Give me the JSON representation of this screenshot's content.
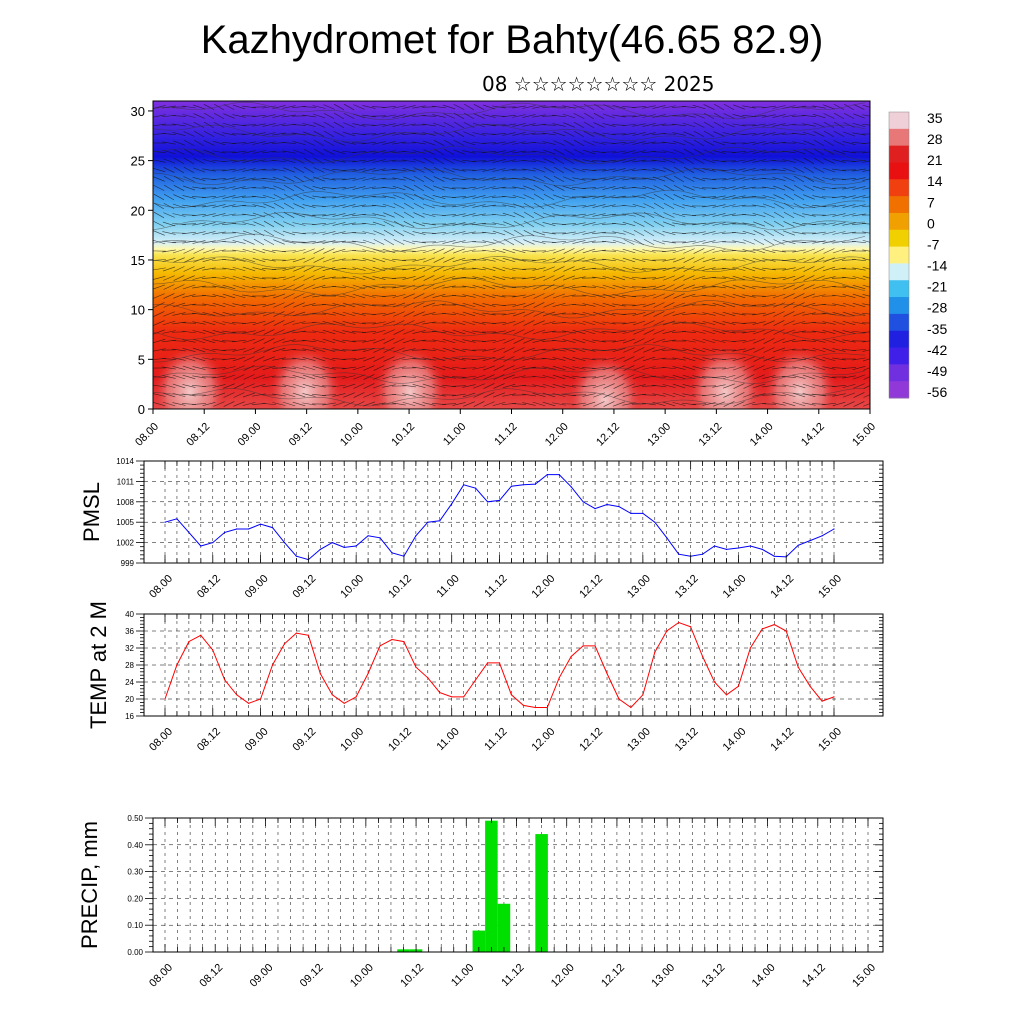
{
  "title": "Kazhydromet for Bahty(46.65 82.9)",
  "subtitle": "08 ☆☆☆☆☆☆☆☆ 2025",
  "colors": {
    "pmsl_line": "#0000ff",
    "temp_line": "#ff0000",
    "precip_bar": "#00e000",
    "colorbar": [
      "#f0d0d8",
      "#e87878",
      "#e02020",
      "#e81010",
      "#f04010",
      "#f07000",
      "#f0a000",
      "#f0d000",
      "#fff080",
      "#d0f0f8",
      "#40c0f0",
      "#2090e8",
      "#2050e0",
      "#2020e0",
      "#4020e8",
      "#7030e0",
      "#9038d8"
    ]
  },
  "chart_data": [
    {
      "type": "heatmap",
      "title": "",
      "ylabel": "",
      "ylim": [
        0,
        31
      ],
      "yticks": [
        "0",
        "5",
        "10",
        "15",
        "20",
        "25",
        "30"
      ],
      "xticks": [
        "08.00",
        "08.12",
        "09.00",
        "09.12",
        "10.00",
        "10.12",
        "11.00",
        "11.12",
        "12.00",
        "12.12",
        "13.00",
        "13.12",
        "14.00",
        "14.12",
        "15.00"
      ],
      "colorbar_labels": [
        "35",
        "28",
        "21",
        "14",
        "7",
        "0",
        "-7",
        "-14",
        "-21",
        "-28",
        "-35",
        "-42",
        "-49",
        "-56"
      ]
    },
    {
      "type": "line",
      "ylabel": "PMSL",
      "ylim": [
        999,
        1014
      ],
      "yticks": [
        "1014",
        "1011",
        "1008",
        "1005",
        "1002",
        "999"
      ],
      "xticks": [
        "08.00",
        "08.12",
        "09.00",
        "09.12",
        "10.00",
        "10.12",
        "11.00",
        "11.12",
        "12.00",
        "12.12",
        "13.00",
        "13.12",
        "14.00",
        "14.12",
        "15.00"
      ],
      "series": [
        {
          "values": [
            1005,
            1005.5,
            1003.5,
            1001.5,
            1002,
            1003.5,
            1004,
            1004,
            1004.7,
            1004.2,
            1002,
            1000,
            999.5,
            1001,
            1002,
            1001.3,
            1001.5,
            1003,
            1002.7,
            1000.5,
            1000,
            1003,
            1005,
            1005.2,
            1007.7,
            1010.5,
            1010,
            1008,
            1008.2,
            1010.3,
            1010.5,
            1010.6,
            1012,
            1012,
            1010.2,
            1008,
            1007,
            1007.6,
            1007.3,
            1006.3,
            1006.3,
            1005,
            1002.7,
            1000.3,
            1000,
            1000.3,
            1001.5,
            1001,
            1001.2,
            1001.5,
            1001,
            1000,
            999.9,
            1001.6,
            1002.3,
            1003,
            1004
          ]
        }
      ]
    },
    {
      "type": "line",
      "ylabel": "TEMP at 2 M",
      "ylim": [
        16,
        40
      ],
      "yticks": [
        "40",
        "36",
        "32",
        "28",
        "24",
        "20",
        "16"
      ],
      "xticks": [
        "08.00",
        "08.12",
        "09.00",
        "09.12",
        "10.00",
        "10.12",
        "11.00",
        "11.12",
        "12.00",
        "12.12",
        "13.00",
        "13.12",
        "14.00",
        "14.12",
        "15.00"
      ],
      "series": [
        {
          "values": [
            20,
            28,
            33.5,
            35,
            31.5,
            24.5,
            21,
            19,
            20,
            28,
            33,
            35.5,
            35,
            26,
            21,
            19,
            20.5,
            26,
            32.5,
            34,
            33.5,
            27.5,
            25,
            21.5,
            20.5,
            20.5,
            24.5,
            28.5,
            28.5,
            21,
            18.5,
            18,
            18,
            25,
            30,
            32.5,
            32.5,
            26,
            20,
            18,
            21,
            31,
            36,
            38,
            37,
            30,
            24,
            21,
            23,
            32,
            36.5,
            37.5,
            36,
            27.5,
            23,
            19.5,
            20.5
          ]
        }
      ]
    },
    {
      "type": "bar",
      "ylabel": "PRECIP, mm",
      "ylim": [
        0,
        0.5
      ],
      "yticks": [
        "0.50",
        "0.40",
        "0.30",
        "0.20",
        "0.10",
        "0.00"
      ],
      "xticks": [
        "08.00",
        "08.12",
        "09.00",
        "09.12",
        "10.00",
        "10.12",
        "11.00",
        "11.12",
        "12.00",
        "12.12",
        "13.00",
        "13.12",
        "14.00",
        "14.12",
        "15.00"
      ],
      "series": [
        {
          "values": [
            0,
            0,
            0,
            0,
            0,
            0,
            0,
            0,
            0,
            0,
            0,
            0,
            0,
            0,
            0,
            0,
            0,
            0,
            0,
            0.01,
            0.01,
            0,
            0,
            0,
            0,
            0.08,
            0.49,
            0.18,
            0,
            0,
            0.44,
            0,
            0,
            0,
            0,
            0,
            0,
            0,
            0,
            0,
            0,
            0,
            0,
            0,
            0,
            0,
            0,
            0,
            0,
            0,
            0,
            0,
            0,
            0,
            0,
            0,
            0
          ]
        }
      ]
    }
  ]
}
